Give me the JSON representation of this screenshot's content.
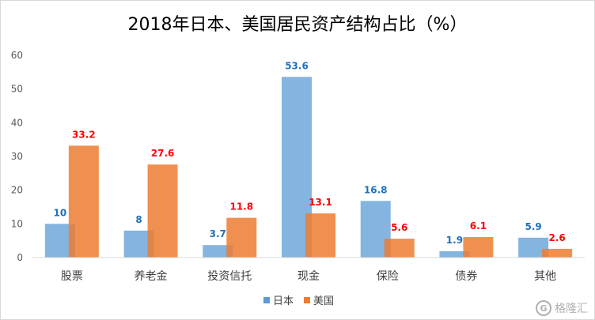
{
  "chart_data": {
    "type": "bar",
    "title": "2018年日本、美国居民资产结构占比（%）",
    "categories": [
      "股票",
      "养老金",
      "投资信托",
      "现金",
      "保险",
      "债券",
      "其他"
    ],
    "series": [
      {
        "name": "日本",
        "values": [
          10,
          8,
          3.7,
          53.6,
          16.8,
          1.9,
          5.9
        ],
        "color": "#5b9bd5",
        "label_color": "#1f6fbf"
      },
      {
        "name": "美国",
        "values": [
          33.2,
          27.6,
          11.8,
          13.1,
          5.6,
          6.1,
          2.6
        ],
        "color": "#ed7d31",
        "label_color": "#ff0000"
      }
    ],
    "yticks": [
      "0",
      "10",
      "20",
      "30",
      "40",
      "50",
      "60"
    ],
    "ylim": [
      0,
      60
    ],
    "grid": false,
    "legend": "bottom"
  },
  "watermark": {
    "text": "格隆汇",
    "icon": "G"
  }
}
